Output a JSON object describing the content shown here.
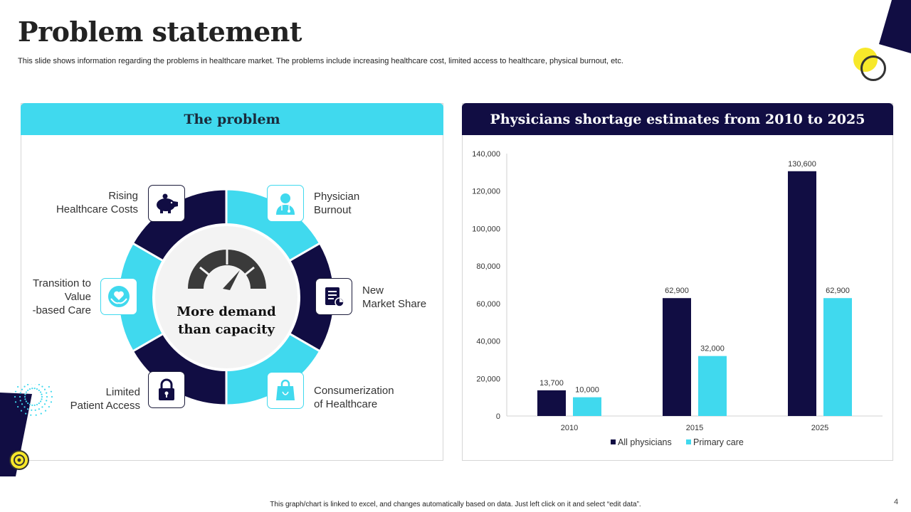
{
  "slide": {
    "title": "Problem statement",
    "subtitle": "This slide shows information regarding the problems in healthcare market. The problems include increasing healthcare cost, limited access to healthcare, physical burnout, etc.",
    "footnote": "This graph/chart is linked to excel, and changes automatically based on data. Just left click on it and select “edit data”.",
    "page_number": "4"
  },
  "problem_panel": {
    "heading": "The problem",
    "center_line1": "More demand",
    "center_line2": "than capacity",
    "items": [
      {
        "line1": "Rising",
        "line2": "Healthcare Costs",
        "icon": "piggy-bank-icon"
      },
      {
        "line1": "Physician",
        "line2": "Burnout",
        "icon": "doctor-icon"
      },
      {
        "line1": "New",
        "line2": "Market Share",
        "icon": "document-chart-icon"
      },
      {
        "line1": "Consumerization",
        "line2": "of Healthcare",
        "icon": "shopping-bag-icon"
      },
      {
        "line1": "Limited",
        "line2": "Patient Access",
        "icon": "lock-icon"
      },
      {
        "line1": "Transition to",
        "line2": "Value",
        "line3": "-based Care",
        "icon": "heart-hands-icon"
      }
    ]
  },
  "colors": {
    "navy": "#110d43",
    "cyan": "#40d9ee",
    "yellow": "#f7e82a"
  },
  "chart_data": {
    "type": "bar",
    "title": "Physicians shortage estimates from 2010 to 2025",
    "categories": [
      "2010",
      "2015",
      "2025"
    ],
    "series": [
      {
        "name": "All physicians",
        "values": [
          13700,
          62900,
          130600
        ],
        "color": "#110d43"
      },
      {
        "name": "Primary care",
        "values": [
          10000,
          32000,
          62900
        ],
        "color": "#40d9ee"
      }
    ],
    "data_labels": [
      [
        "13,700",
        "62,900",
        "130,600"
      ],
      [
        "10,000",
        "32,000",
        "62,900"
      ]
    ],
    "ylim": [
      0,
      140000
    ],
    "yticks": [
      "0",
      "20,000",
      "40,000",
      "60,000",
      "80,000",
      "100,000",
      "120,000",
      "140,000"
    ],
    "xlabel": "",
    "ylabel": "",
    "legend": "bottom"
  }
}
